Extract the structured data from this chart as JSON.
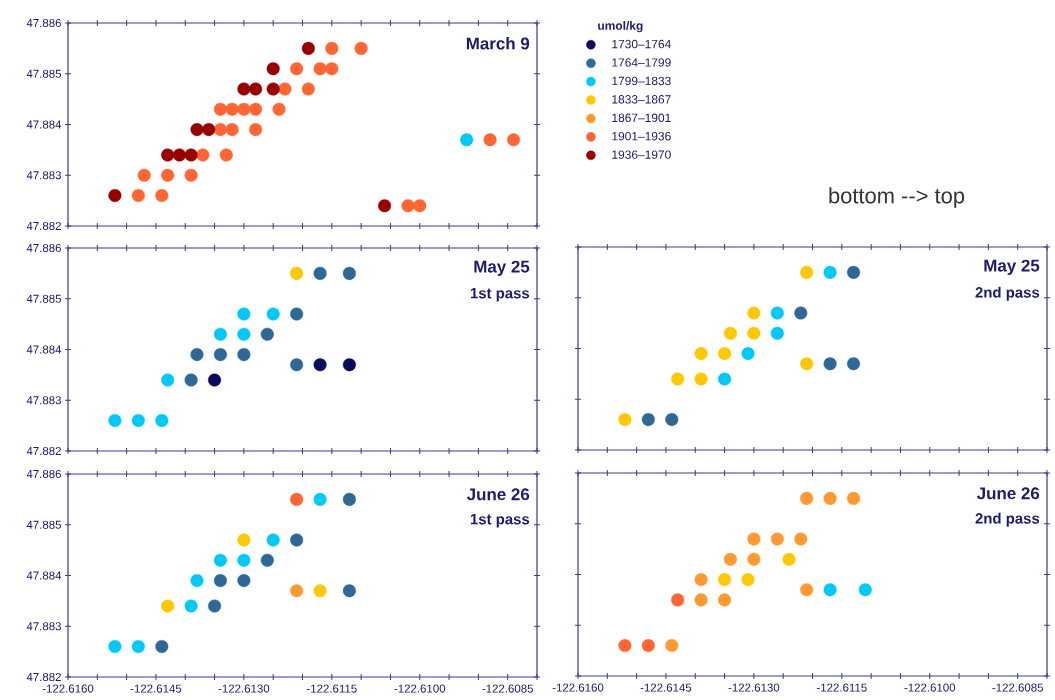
{
  "chart_data": [
    {
      "type": "scatter",
      "title": "March 9",
      "marker": "circle",
      "legend": "right",
      "legend_title": "umol/kg",
      "tick_labels": "y",
      "annotations": [
        "bottom --> top"
      ],
      "xlim": [
        -122.616,
        -122.608
      ],
      "xticks": [
        -122.616,
        -122.6155,
        -122.615,
        -122.6145,
        -122.614,
        -122.6135,
        -122.613,
        -122.6125,
        -122.612,
        -122.6115,
        -122.611,
        -122.6105,
        -122.61,
        -122.6095,
        -122.609,
        -122.6085,
        -122.608
      ],
      "ylim": [
        47.882,
        47.886
      ],
      "yticks": [
        47.882,
        47.883,
        47.884,
        47.885,
        47.886
      ],
      "series": [
        {
          "name": "1730–1764",
          "color": "#0b0b5e"
        },
        {
          "name": "1764–1799",
          "color": "#2f6896"
        },
        {
          "name": "1799–1833",
          "color": "#00c8f8",
          "x": [
            -122.6092
          ],
          "values": [
            47.8837
          ]
        },
        {
          "name": "1833–1867",
          "color": "#ffc800"
        },
        {
          "name": "1867–1901",
          "color": "#ff9a33"
        },
        {
          "name": "1901–1936",
          "color": "#ff6633",
          "x": [
            -122.6115,
            -122.611,
            -122.6121,
            -122.6117,
            -122.6115,
            -122.6123,
            -122.6119,
            -122.6134,
            -122.6132,
            -122.613,
            -122.6128,
            -122.6124,
            -122.6134,
            -122.6132,
            -122.6128,
            -122.6137,
            -122.6133,
            -122.6147,
            -122.6143,
            -122.6139,
            -122.6148,
            -122.6144,
            -122.6088,
            -122.6084,
            -122.6102,
            -122.61
          ],
          "values": [
            47.8855,
            47.8855,
            47.8851,
            47.8851,
            47.8851,
            47.8847,
            47.8847,
            47.8843,
            47.8843,
            47.8843,
            47.8843,
            47.8843,
            47.8839,
            47.8839,
            47.8839,
            47.8834,
            47.8834,
            47.883,
            47.883,
            47.883,
            47.8826,
            47.8826,
            47.8837,
            47.8837,
            47.8824,
            47.8824
          ]
        },
        {
          "name": "1936–1970",
          "color": "#980000",
          "x": [
            -122.6119,
            -122.6125,
            -122.613,
            -122.6128,
            -122.6125,
            -122.6138,
            -122.6136,
            -122.6143,
            -122.6141,
            -122.6139,
            -122.6152,
            -122.6106
          ],
          "values": [
            47.8855,
            47.8851,
            47.8847,
            47.8847,
            47.8847,
            47.8839,
            47.8839,
            47.8834,
            47.8834,
            47.8834,
            47.8826,
            47.8824
          ]
        }
      ]
    },
    {
      "type": "scatter",
      "title": "May 25",
      "subtitle": "1st pass",
      "marker": "circle",
      "tick_labels": "y",
      "xlim": [
        -122.616,
        -122.608
      ],
      "xticks": [
        -122.616,
        -122.6155,
        -122.615,
        -122.6145,
        -122.614,
        -122.6135,
        -122.613,
        -122.6125,
        -122.612,
        -122.6115,
        -122.611,
        -122.6105,
        -122.61,
        -122.6095,
        -122.609,
        -122.6085,
        -122.608
      ],
      "ylim": [
        47.882,
        47.886
      ],
      "yticks": [
        47.882,
        47.883,
        47.884,
        47.885,
        47.886
      ],
      "series": [
        {
          "color": "#0b0b5e",
          "x": [
            -122.6117,
            -122.6112,
            -122.6135
          ],
          "values": [
            47.8837,
            47.8837,
            47.8834
          ]
        },
        {
          "color": "#2f6896",
          "x": [
            -122.6117,
            -122.6112,
            -122.6121,
            -122.6126,
            -122.6138,
            -122.6134,
            -122.613,
            -122.6121,
            -122.6139
          ],
          "values": [
            47.8855,
            47.8855,
            47.8847,
            47.8843,
            47.8839,
            47.8839,
            47.8839,
            47.8837,
            47.8834
          ]
        },
        {
          "color": "#00c8f8",
          "x": [
            -122.613,
            -122.6125,
            -122.6134,
            -122.613,
            -122.6143,
            -122.6152,
            -122.6148,
            -122.6144
          ],
          "values": [
            47.8847,
            47.8847,
            47.8843,
            47.8843,
            47.8834,
            47.8826,
            47.8826,
            47.8826
          ]
        },
        {
          "color": "#ffc800",
          "x": [
            -122.6121
          ],
          "values": [
            47.8855
          ]
        }
      ]
    },
    {
      "type": "scatter",
      "title": "May 25",
      "subtitle": "2nd pass",
      "marker": "circle",
      "tick_labels": false,
      "xlim": [
        -122.616,
        -122.608
      ],
      "xticks": [
        -122.616,
        -122.6155,
        -122.615,
        -122.6145,
        -122.614,
        -122.6135,
        -122.613,
        -122.6125,
        -122.612,
        -122.6115,
        -122.611,
        -122.6105,
        -122.61,
        -122.6095,
        -122.609,
        -122.6085,
        -122.608
      ],
      "ylim": [
        47.882,
        47.886
      ],
      "yticks": [
        47.882,
        47.883,
        47.884,
        47.885,
        47.886
      ],
      "series": [
        {
          "color": "#2f6896",
          "x": [
            -122.6113,
            -122.6122,
            -122.6117,
            -122.6113,
            -122.6148,
            -122.6144
          ],
          "values": [
            47.8855,
            47.8847,
            47.8837,
            47.8837,
            47.8826,
            47.8826
          ]
        },
        {
          "color": "#00c8f8",
          "x": [
            -122.6117,
            -122.6126,
            -122.6126,
            -122.6131,
            -122.6135
          ],
          "values": [
            47.8855,
            47.8847,
            47.8843,
            47.8839,
            47.8834
          ]
        },
        {
          "color": "#ffc800",
          "x": [
            -122.6121,
            -122.613,
            -122.6134,
            -122.613,
            -122.6139,
            -122.6135,
            -122.6121,
            -122.6143,
            -122.6139,
            -122.6152
          ],
          "values": [
            47.8855,
            47.8847,
            47.8843,
            47.8843,
            47.8839,
            47.8839,
            47.8837,
            47.8834,
            47.8834,
            47.8826
          ]
        }
      ]
    },
    {
      "type": "scatter",
      "title": "June 26",
      "subtitle": "1st pass",
      "marker": "circle",
      "xlim": [
        -122.616,
        -122.608
      ],
      "xticks": [
        {
          "value": -122.616,
          "label": "-122.6160"
        },
        {
          "value": -122.6155,
          "label": null
        },
        {
          "value": -122.615,
          "label": null
        },
        {
          "value": -122.6145,
          "label": "-122.6145"
        },
        {
          "value": -122.614,
          "label": null
        },
        {
          "value": -122.6135,
          "label": null
        },
        {
          "value": -122.613,
          "label": "-122.6130"
        },
        {
          "value": -122.6125,
          "label": null
        },
        {
          "value": -122.612,
          "label": null
        },
        {
          "value": -122.6115,
          "label": "-122.6115"
        },
        {
          "value": -122.611,
          "label": null
        },
        {
          "value": -122.6105,
          "label": null
        },
        {
          "value": -122.61,
          "label": "-122.6100"
        },
        {
          "value": -122.6095,
          "label": null
        },
        {
          "value": -122.609,
          "label": null
        },
        {
          "value": -122.6085,
          "label": "-122.6085"
        },
        {
          "value": -122.608,
          "label": null
        }
      ],
      "ylim": [
        47.882,
        47.886
      ],
      "yticks": [
        47.882,
        47.883,
        47.884,
        47.885,
        47.886
      ],
      "series": [
        {
          "color": "#2f6896",
          "x": [
            -122.6112,
            -122.6121,
            -122.6126,
            -122.6134,
            -122.613,
            -122.6112,
            -122.6135,
            -122.6144
          ],
          "values": [
            47.8855,
            47.8847,
            47.8843,
            47.8839,
            47.8839,
            47.8837,
            47.8834,
            47.8826
          ]
        },
        {
          "color": "#00c8f8",
          "x": [
            -122.6117,
            -122.6125,
            -122.6134,
            -122.613,
            -122.6138,
            -122.6139,
            -122.6152,
            -122.6148
          ],
          "values": [
            47.8855,
            47.8847,
            47.8843,
            47.8843,
            47.8839,
            47.8834,
            47.8826,
            47.8826
          ]
        },
        {
          "color": "#ffc800",
          "x": [
            -122.613,
            -122.6117,
            -122.6143
          ],
          "values": [
            47.8847,
            47.8837,
            47.8834
          ]
        },
        {
          "color": "#ff9a33",
          "x": [
            -122.6121
          ],
          "values": [
            47.8837
          ]
        },
        {
          "color": "#ff6633",
          "x": [
            -122.6121
          ],
          "values": [
            47.8855
          ]
        }
      ]
    },
    {
      "type": "scatter",
      "title": "June 26",
      "subtitle": "2nd pass",
      "marker": "circle",
      "tick_labels": "x",
      "xlim": [
        -122.616,
        -122.608
      ],
      "xticks": [
        {
          "value": -122.616,
          "label": "-122.6160"
        },
        {
          "value": -122.6155,
          "label": null
        },
        {
          "value": -122.615,
          "label": null
        },
        {
          "value": -122.6145,
          "label": "-122.6145"
        },
        {
          "value": -122.614,
          "label": null
        },
        {
          "value": -122.6135,
          "label": null
        },
        {
          "value": -122.613,
          "label": "-122.6130"
        },
        {
          "value": -122.6125,
          "label": null
        },
        {
          "value": -122.612,
          "label": null
        },
        {
          "value": -122.6115,
          "label": "-122.6115"
        },
        {
          "value": -122.611,
          "label": null
        },
        {
          "value": -122.6105,
          "label": null
        },
        {
          "value": -122.61,
          "label": "-122.6100"
        },
        {
          "value": -122.6095,
          "label": null
        },
        {
          "value": -122.609,
          "label": null
        },
        {
          "value": -122.6085,
          "label": "-122.6085"
        },
        {
          "value": -122.608,
          "label": null
        }
      ],
      "ylim": [
        47.882,
        47.886
      ],
      "yticks": [
        47.882,
        47.883,
        47.884,
        47.885,
        47.886
      ],
      "series": [
        {
          "color": "#00c8f8",
          "x": [
            -122.6117,
            -122.6111
          ],
          "values": [
            47.8837,
            47.8837
          ]
        },
        {
          "color": "#ffc800",
          "x": [
            -122.6124,
            -122.6135,
            -122.6131
          ],
          "values": [
            47.8843,
            47.8839,
            47.8839
          ]
        },
        {
          "color": "#ff9a33",
          "x": [
            -122.6121,
            -122.6117,
            -122.6113,
            -122.613,
            -122.6126,
            -122.6122,
            -122.6134,
            -122.613,
            -122.6139,
            -122.6121,
            -122.6139,
            -122.6135,
            -122.6144
          ],
          "values": [
            47.8855,
            47.8855,
            47.8855,
            47.8847,
            47.8847,
            47.8847,
            47.8843,
            47.8843,
            47.8839,
            47.8837,
            47.8835,
            47.8835,
            47.8826
          ]
        },
        {
          "color": "#ff6633",
          "x": [
            -122.6143,
            -122.6152,
            -122.6148
          ],
          "values": [
            47.8835,
            47.8826,
            47.8826
          ]
        }
      ]
    }
  ]
}
